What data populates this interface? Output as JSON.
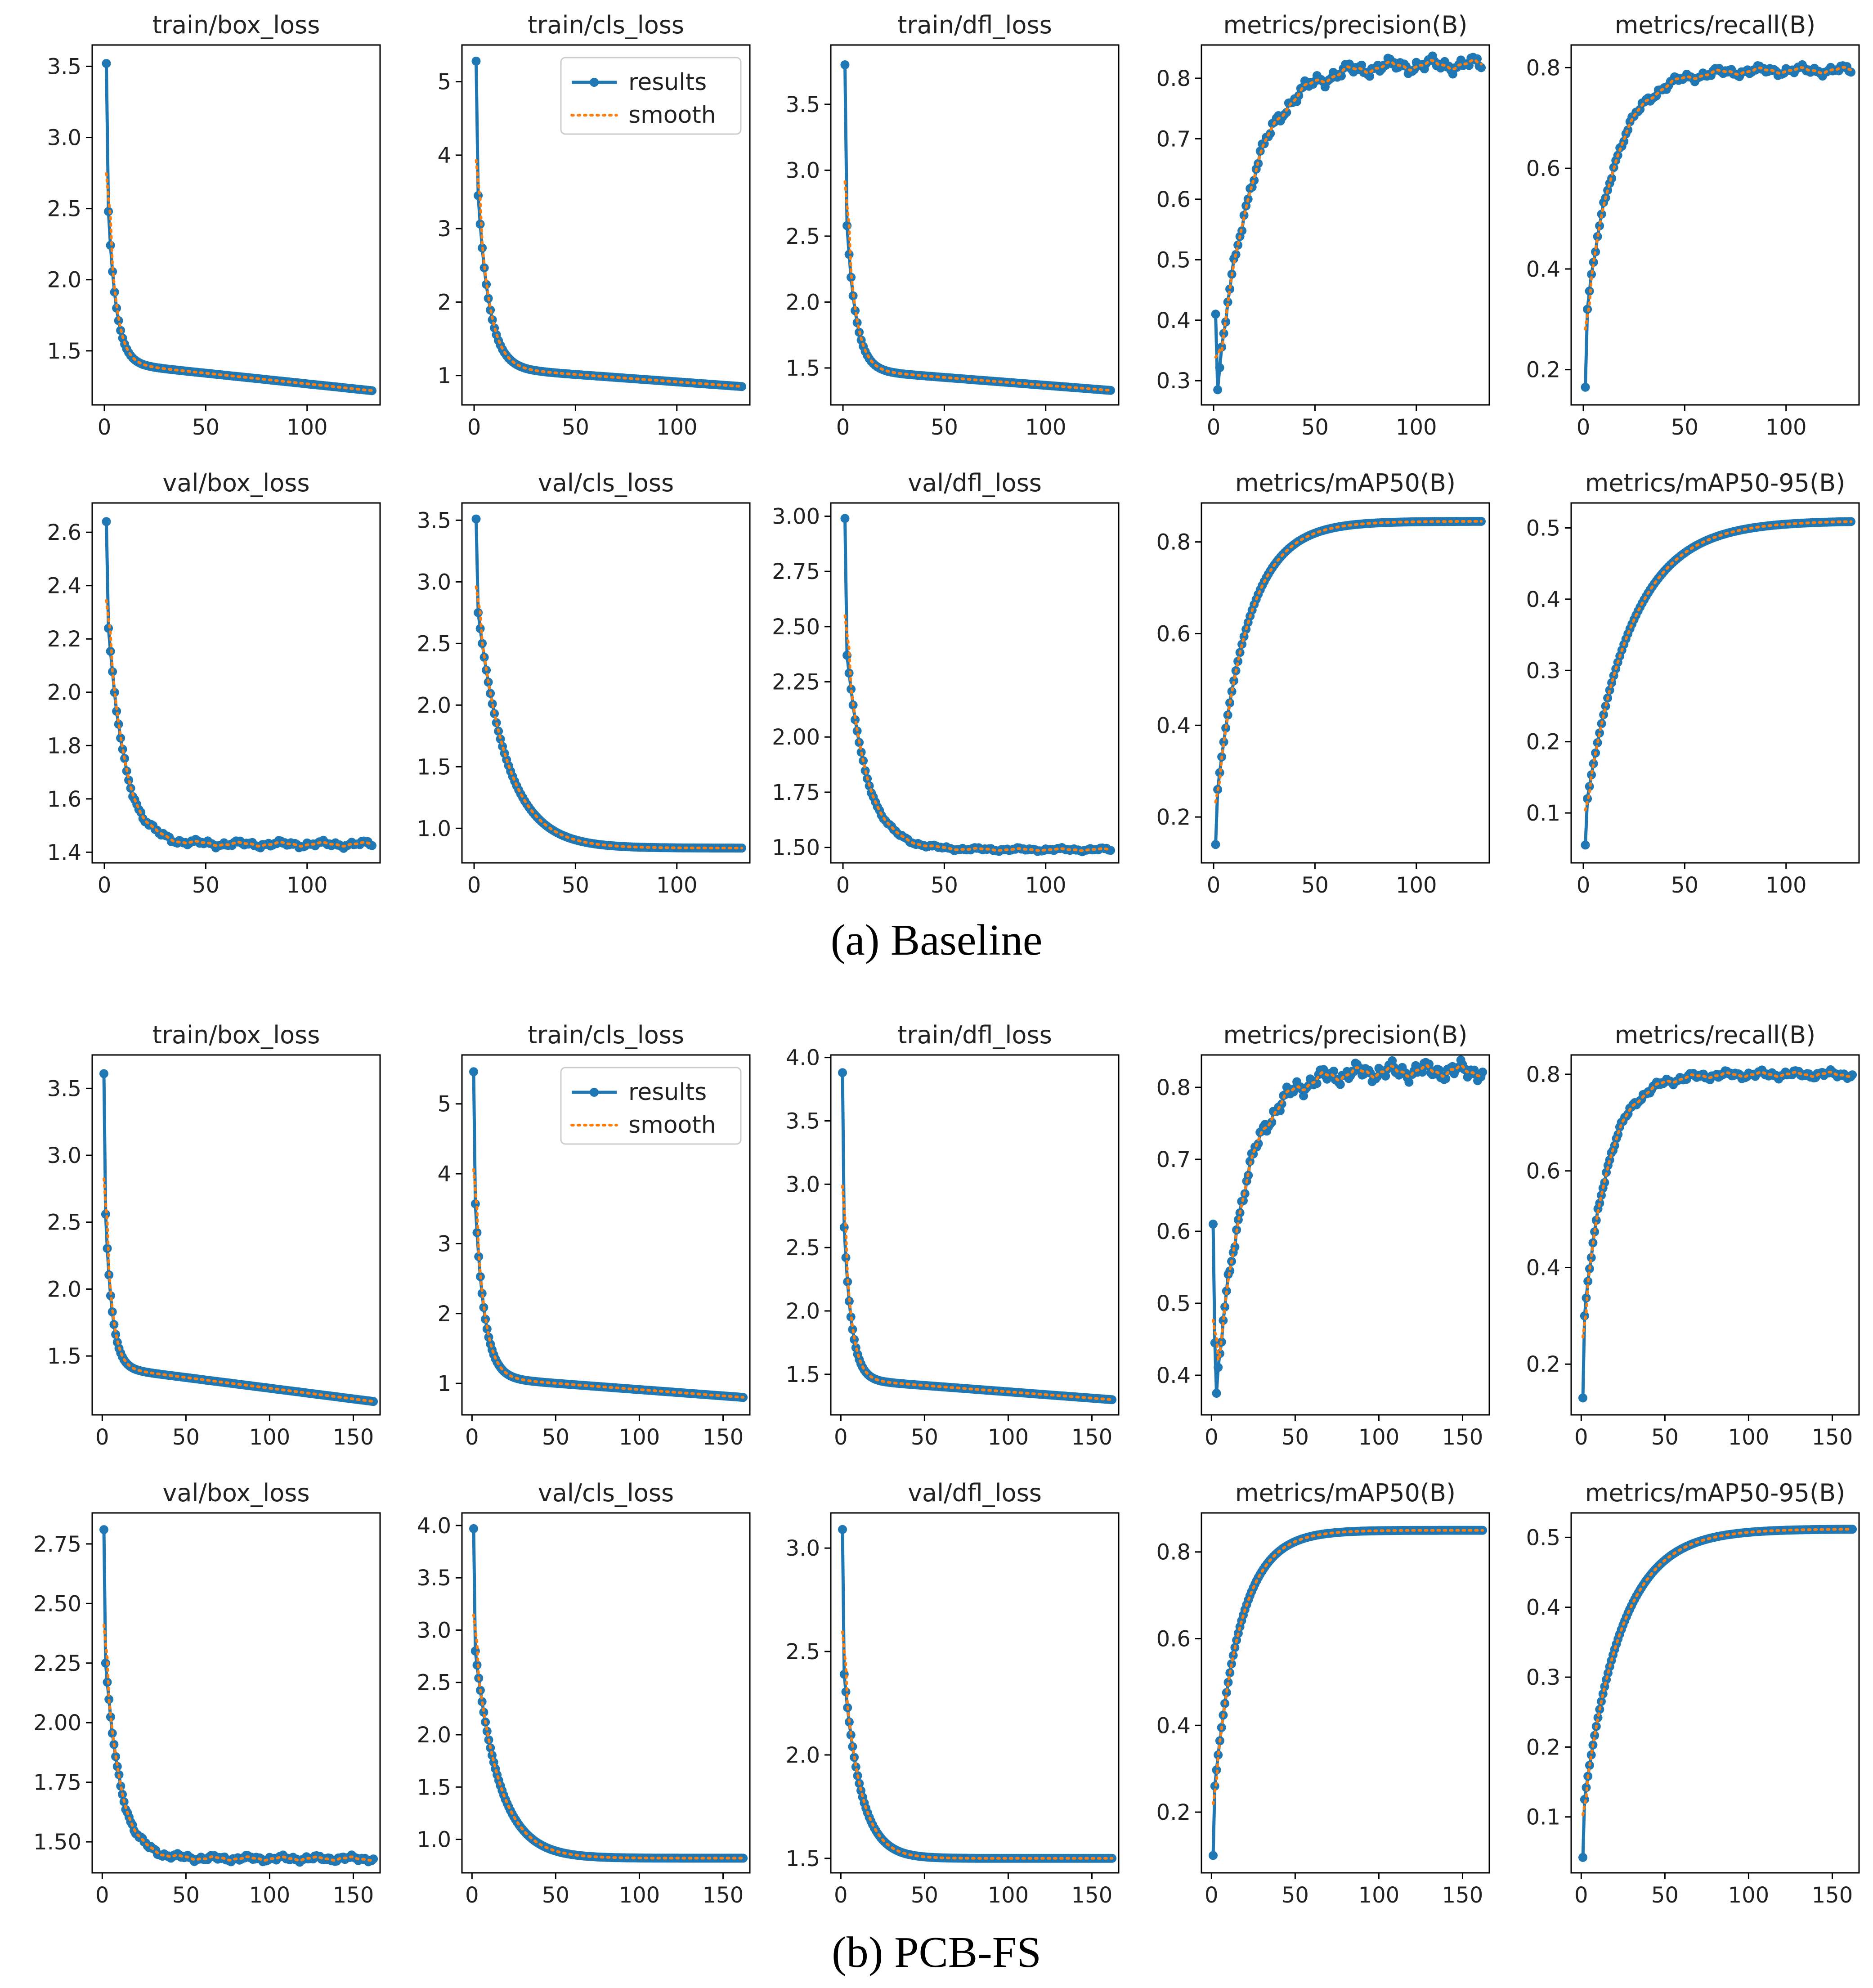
{
  "colors": {
    "results": "#1f77b4",
    "smooth": "#ff7f0e",
    "axis": "#000000",
    "background": "#ffffff"
  },
  "legend": {
    "results_label": "results",
    "smooth_label": "smooth"
  },
  "chart_data": [
    {
      "group": "baseline",
      "caption": "(a) Baseline",
      "epochs": 132,
      "xticks": [
        0,
        50,
        100
      ],
      "plots": [
        {
          "title": "train/box_loss",
          "type": "line",
          "start": 3.52,
          "second": 2.48,
          "end": 1.22,
          "rate": 0.25,
          "shape": "decay",
          "drift": -0.0015,
          "yticks": [
            1.5,
            2.0,
            2.5,
            3.0,
            3.5
          ],
          "ylim": [
            1.12,
            3.65
          ],
          "tick_decimals": 1
        },
        {
          "title": "train/cls_loss",
          "type": "line",
          "start": 5.28,
          "second": 3.45,
          "end": 0.85,
          "rate": 0.18,
          "shape": "decay",
          "drift": -0.002,
          "yticks": [
            1,
            2,
            3,
            4,
            5
          ],
          "ylim": [
            0.6,
            5.5
          ],
          "tick_decimals": 0,
          "legend": true
        },
        {
          "title": "train/dfl_loss",
          "type": "line",
          "start": 3.8,
          "second": 2.58,
          "end": 1.33,
          "rate": 0.22,
          "shape": "decay",
          "drift": -0.0012,
          "yticks": [
            1.5,
            2.0,
            2.5,
            3.0,
            3.5
          ],
          "ylim": [
            1.22,
            3.95
          ],
          "tick_decimals": 1
        },
        {
          "title": "metrics/precision(B)",
          "type": "line",
          "start": 0.41,
          "second": 0.285,
          "end": 0.823,
          "rate": 0.06,
          "shape": "rise",
          "noise": 0.008,
          "yticks": [
            0.3,
            0.4,
            0.5,
            0.6,
            0.7,
            0.8
          ],
          "ylim": [
            0.26,
            0.855
          ],
          "tick_decimals": 1
        },
        {
          "title": "metrics/recall(B)",
          "type": "line",
          "start": 0.165,
          "second": 0.32,
          "end": 0.795,
          "rate": 0.07,
          "shape": "rise",
          "noise": 0.006,
          "yticks": [
            0.2,
            0.4,
            0.6,
            0.8
          ],
          "ylim": [
            0.13,
            0.845
          ],
          "tick_decimals": 1
        },
        {
          "title": "val/box_loss",
          "type": "line",
          "start": 2.64,
          "second": 2.24,
          "end": 1.43,
          "rate": 0.12,
          "shape": "decay",
          "noise": 0.008,
          "yticks": [
            1.4,
            1.6,
            1.8,
            2.0,
            2.2,
            2.4,
            2.6
          ],
          "ylim": [
            1.36,
            2.71
          ],
          "tick_decimals": 1
        },
        {
          "title": "val/cls_loss",
          "type": "line",
          "start": 3.51,
          "second": 2.75,
          "end": 0.84,
          "rate": 0.07,
          "shape": "decay",
          "yticks": [
            1.0,
            1.5,
            2.0,
            2.5,
            3.0,
            3.5
          ],
          "ylim": [
            0.72,
            3.64
          ],
          "tick_decimals": 1
        },
        {
          "title": "val/dfl_loss",
          "type": "line",
          "start": 2.99,
          "second": 2.37,
          "end": 1.49,
          "rate": 0.1,
          "shape": "decay",
          "noise": 0.005,
          "yticks": [
            1.5,
            1.75,
            2.0,
            2.25,
            2.5,
            2.75,
            3.0
          ],
          "ylim": [
            1.43,
            3.06
          ],
          "tick_decimals": 2
        },
        {
          "title": "metrics/mAP50(B)",
          "type": "line",
          "start": 0.14,
          "second": 0.26,
          "end": 0.845,
          "rate": 0.065,
          "shape": "rise",
          "yticks": [
            0.2,
            0.4,
            0.6,
            0.8
          ],
          "ylim": [
            0.1,
            0.885
          ],
          "tick_decimals": 1
        },
        {
          "title": "metrics/mAP50-95(B)",
          "type": "line",
          "start": 0.055,
          "second": 0.12,
          "end": 0.51,
          "rate": 0.045,
          "shape": "rise",
          "yticks": [
            0.1,
            0.2,
            0.3,
            0.4,
            0.5
          ],
          "ylim": [
            0.03,
            0.535
          ],
          "tick_decimals": 1
        }
      ]
    },
    {
      "group": "pcb_fs",
      "caption": "(b) PCB-FS",
      "epochs": 162,
      "xticks": [
        0,
        50,
        100,
        150
      ],
      "plots": [
        {
          "title": "train/box_loss",
          "type": "line",
          "start": 3.61,
          "second": 2.56,
          "end": 1.16,
          "rate": 0.25,
          "shape": "decay",
          "drift": -0.0016,
          "yticks": [
            1.5,
            2.0,
            2.5,
            3.0,
            3.5
          ],
          "ylim": [
            1.06,
            3.75
          ],
          "tick_decimals": 1
        },
        {
          "title": "train/cls_loss",
          "type": "line",
          "start": 5.46,
          "second": 3.57,
          "end": 0.8,
          "rate": 0.18,
          "shape": "decay",
          "drift": -0.0018,
          "yticks": [
            1,
            2,
            3,
            4,
            5
          ],
          "ylim": [
            0.55,
            5.7
          ],
          "tick_decimals": 0,
          "legend": true
        },
        {
          "title": "train/dfl_loss",
          "type": "line",
          "start": 3.88,
          "second": 2.66,
          "end": 1.3,
          "rate": 0.22,
          "shape": "decay",
          "drift": -0.001,
          "yticks": [
            1.5,
            2.0,
            2.5,
            3.0,
            3.5,
            4.0
          ],
          "ylim": [
            1.18,
            4.02
          ],
          "tick_decimals": 1
        },
        {
          "title": "metrics/precision(B)",
          "type": "line",
          "start": 0.61,
          "second": 0.445,
          "third": 0.375,
          "end": 0.823,
          "rate": 0.06,
          "shape": "rise",
          "noise": 0.008,
          "yticks": [
            0.4,
            0.5,
            0.6,
            0.7,
            0.8
          ],
          "ylim": [
            0.345,
            0.845
          ],
          "tick_decimals": 1
        },
        {
          "title": "metrics/recall(B)",
          "type": "line",
          "start": 0.13,
          "second": 0.3,
          "end": 0.8,
          "rate": 0.07,
          "shape": "rise",
          "noise": 0.005,
          "yticks": [
            0.2,
            0.4,
            0.6,
            0.8
          ],
          "ylim": [
            0.095,
            0.84
          ],
          "tick_decimals": 1
        },
        {
          "title": "val/box_loss",
          "type": "line",
          "start": 2.81,
          "second": 2.25,
          "end": 1.43,
          "rate": 0.11,
          "shape": "decay",
          "noise": 0.008,
          "yticks": [
            1.5,
            1.75,
            2.0,
            2.25,
            2.5,
            2.75
          ],
          "ylim": [
            1.37,
            2.88
          ],
          "tick_decimals": 2
        },
        {
          "title": "val/cls_loss",
          "type": "line",
          "start": 3.97,
          "second": 2.8,
          "end": 0.82,
          "rate": 0.07,
          "shape": "decay",
          "yticks": [
            1.0,
            1.5,
            2.0,
            2.5,
            3.0,
            3.5,
            4.0
          ],
          "ylim": [
            0.68,
            4.12
          ],
          "tick_decimals": 1
        },
        {
          "title": "val/dfl_loss",
          "type": "line",
          "start": 3.09,
          "second": 2.39,
          "end": 1.5,
          "rate": 0.1,
          "shape": "decay",
          "yticks": [
            1.5,
            2.0,
            2.5,
            3.0
          ],
          "ylim": [
            1.43,
            3.17
          ],
          "tick_decimals": 1
        },
        {
          "title": "metrics/mAP50(B)",
          "type": "line",
          "start": 0.1,
          "second": 0.26,
          "end": 0.85,
          "rate": 0.065,
          "shape": "rise",
          "yticks": [
            0.2,
            0.4,
            0.6,
            0.8
          ],
          "ylim": [
            0.06,
            0.89
          ],
          "tick_decimals": 1
        },
        {
          "title": "metrics/mAP50-95(B)",
          "type": "line",
          "start": 0.042,
          "second": 0.125,
          "end": 0.512,
          "rate": 0.045,
          "shape": "rise",
          "yticks": [
            0.1,
            0.2,
            0.3,
            0.4,
            0.5
          ],
          "ylim": [
            0.02,
            0.535
          ],
          "tick_decimals": 1
        }
      ]
    }
  ]
}
